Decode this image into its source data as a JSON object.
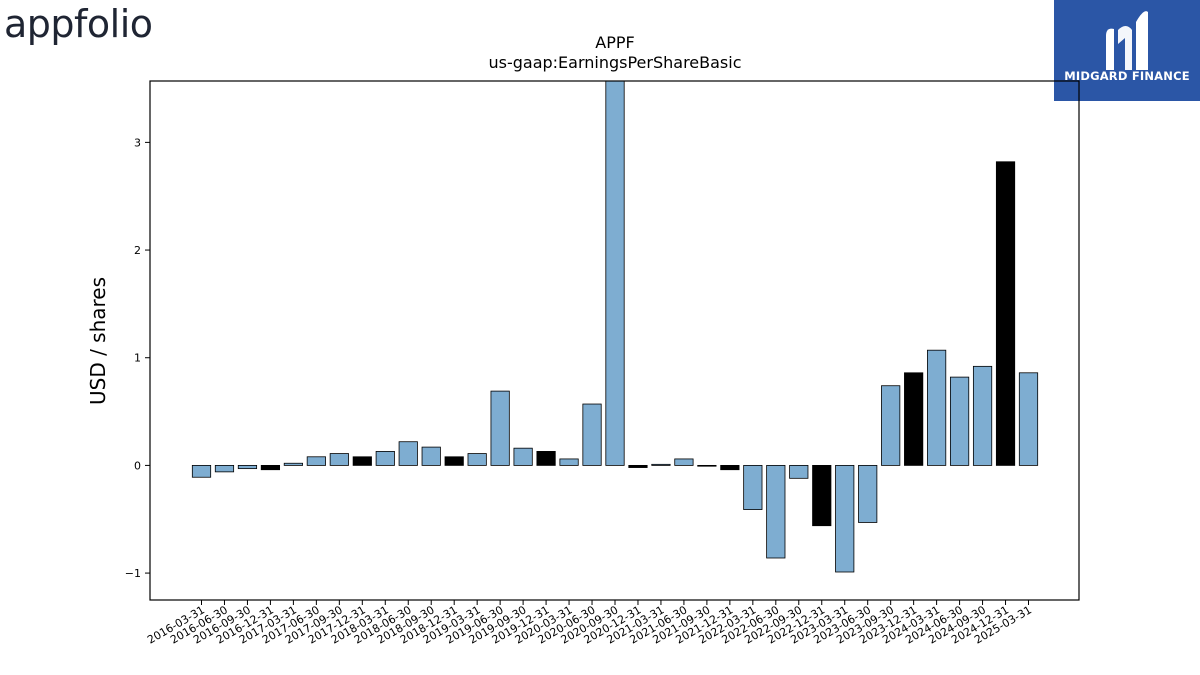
{
  "logos": {
    "left_text": "appfolio",
    "right_text": "MIDGARD FINANCE",
    "right_icon": "midgard-m-mark-icon",
    "right_bg_color": "#2b56a6"
  },
  "chart_data": {
    "type": "bar",
    "title": "APPF",
    "subtitle": "us-gaap:EarningsPerShareBasic",
    "xlabel": "",
    "ylabel": "USD / shares",
    "ylim": [
      -1.25,
      3.57
    ],
    "yticks": [
      -1,
      0,
      1,
      2,
      3
    ],
    "ytick_labels": [
      "−1",
      "0",
      "1",
      "2",
      "3"
    ],
    "grid": false,
    "legend": "none",
    "colors": {
      "regular": "#7eadd1",
      "highlight": "#000000",
      "edge": "#000000"
    },
    "categories": [
      "2016-03-31",
      "2016-06-30",
      "2016-09-30",
      "2016-12-31",
      "2017-03-31",
      "2017-06-30",
      "2017-09-30",
      "2017-12-31",
      "2018-03-31",
      "2018-06-30",
      "2018-09-30",
      "2018-12-31",
      "2019-03-31",
      "2019-06-30",
      "2019-09-30",
      "2019-12-31",
      "2020-03-31",
      "2020-06-30",
      "2020-09-30",
      "2020-12-31",
      "2021-03-31",
      "2021-06-30",
      "2021-09-30",
      "2021-12-31",
      "2022-03-31",
      "2022-06-30",
      "2022-09-30",
      "2022-12-31",
      "2023-03-31",
      "2023-06-30",
      "2023-09-30",
      "2023-12-31",
      "2024-03-31",
      "2024-06-30",
      "2024-09-30",
      "2024-12-31",
      "2025-03-31"
    ],
    "values": [
      -0.11,
      -0.06,
      -0.03,
      -0.04,
      0.02,
      0.08,
      0.11,
      0.08,
      0.13,
      0.22,
      0.17,
      0.08,
      0.11,
      0.69,
      0.16,
      0.13,
      0.06,
      0.57,
      3.6,
      -0.02,
      0.01,
      0.06,
      0.0,
      -0.04,
      -0.41,
      -0.86,
      -0.12,
      -0.56,
      -0.99,
      -0.53,
      0.74,
      0.86,
      1.07,
      0.82,
      0.92,
      2.82,
      0.86
    ],
    "highlight": [
      false,
      false,
      false,
      true,
      false,
      false,
      false,
      true,
      false,
      false,
      false,
      true,
      false,
      false,
      false,
      true,
      false,
      false,
      false,
      true,
      false,
      false,
      false,
      true,
      false,
      false,
      false,
      true,
      false,
      false,
      false,
      true,
      false,
      false,
      false,
      true,
      false
    ]
  }
}
